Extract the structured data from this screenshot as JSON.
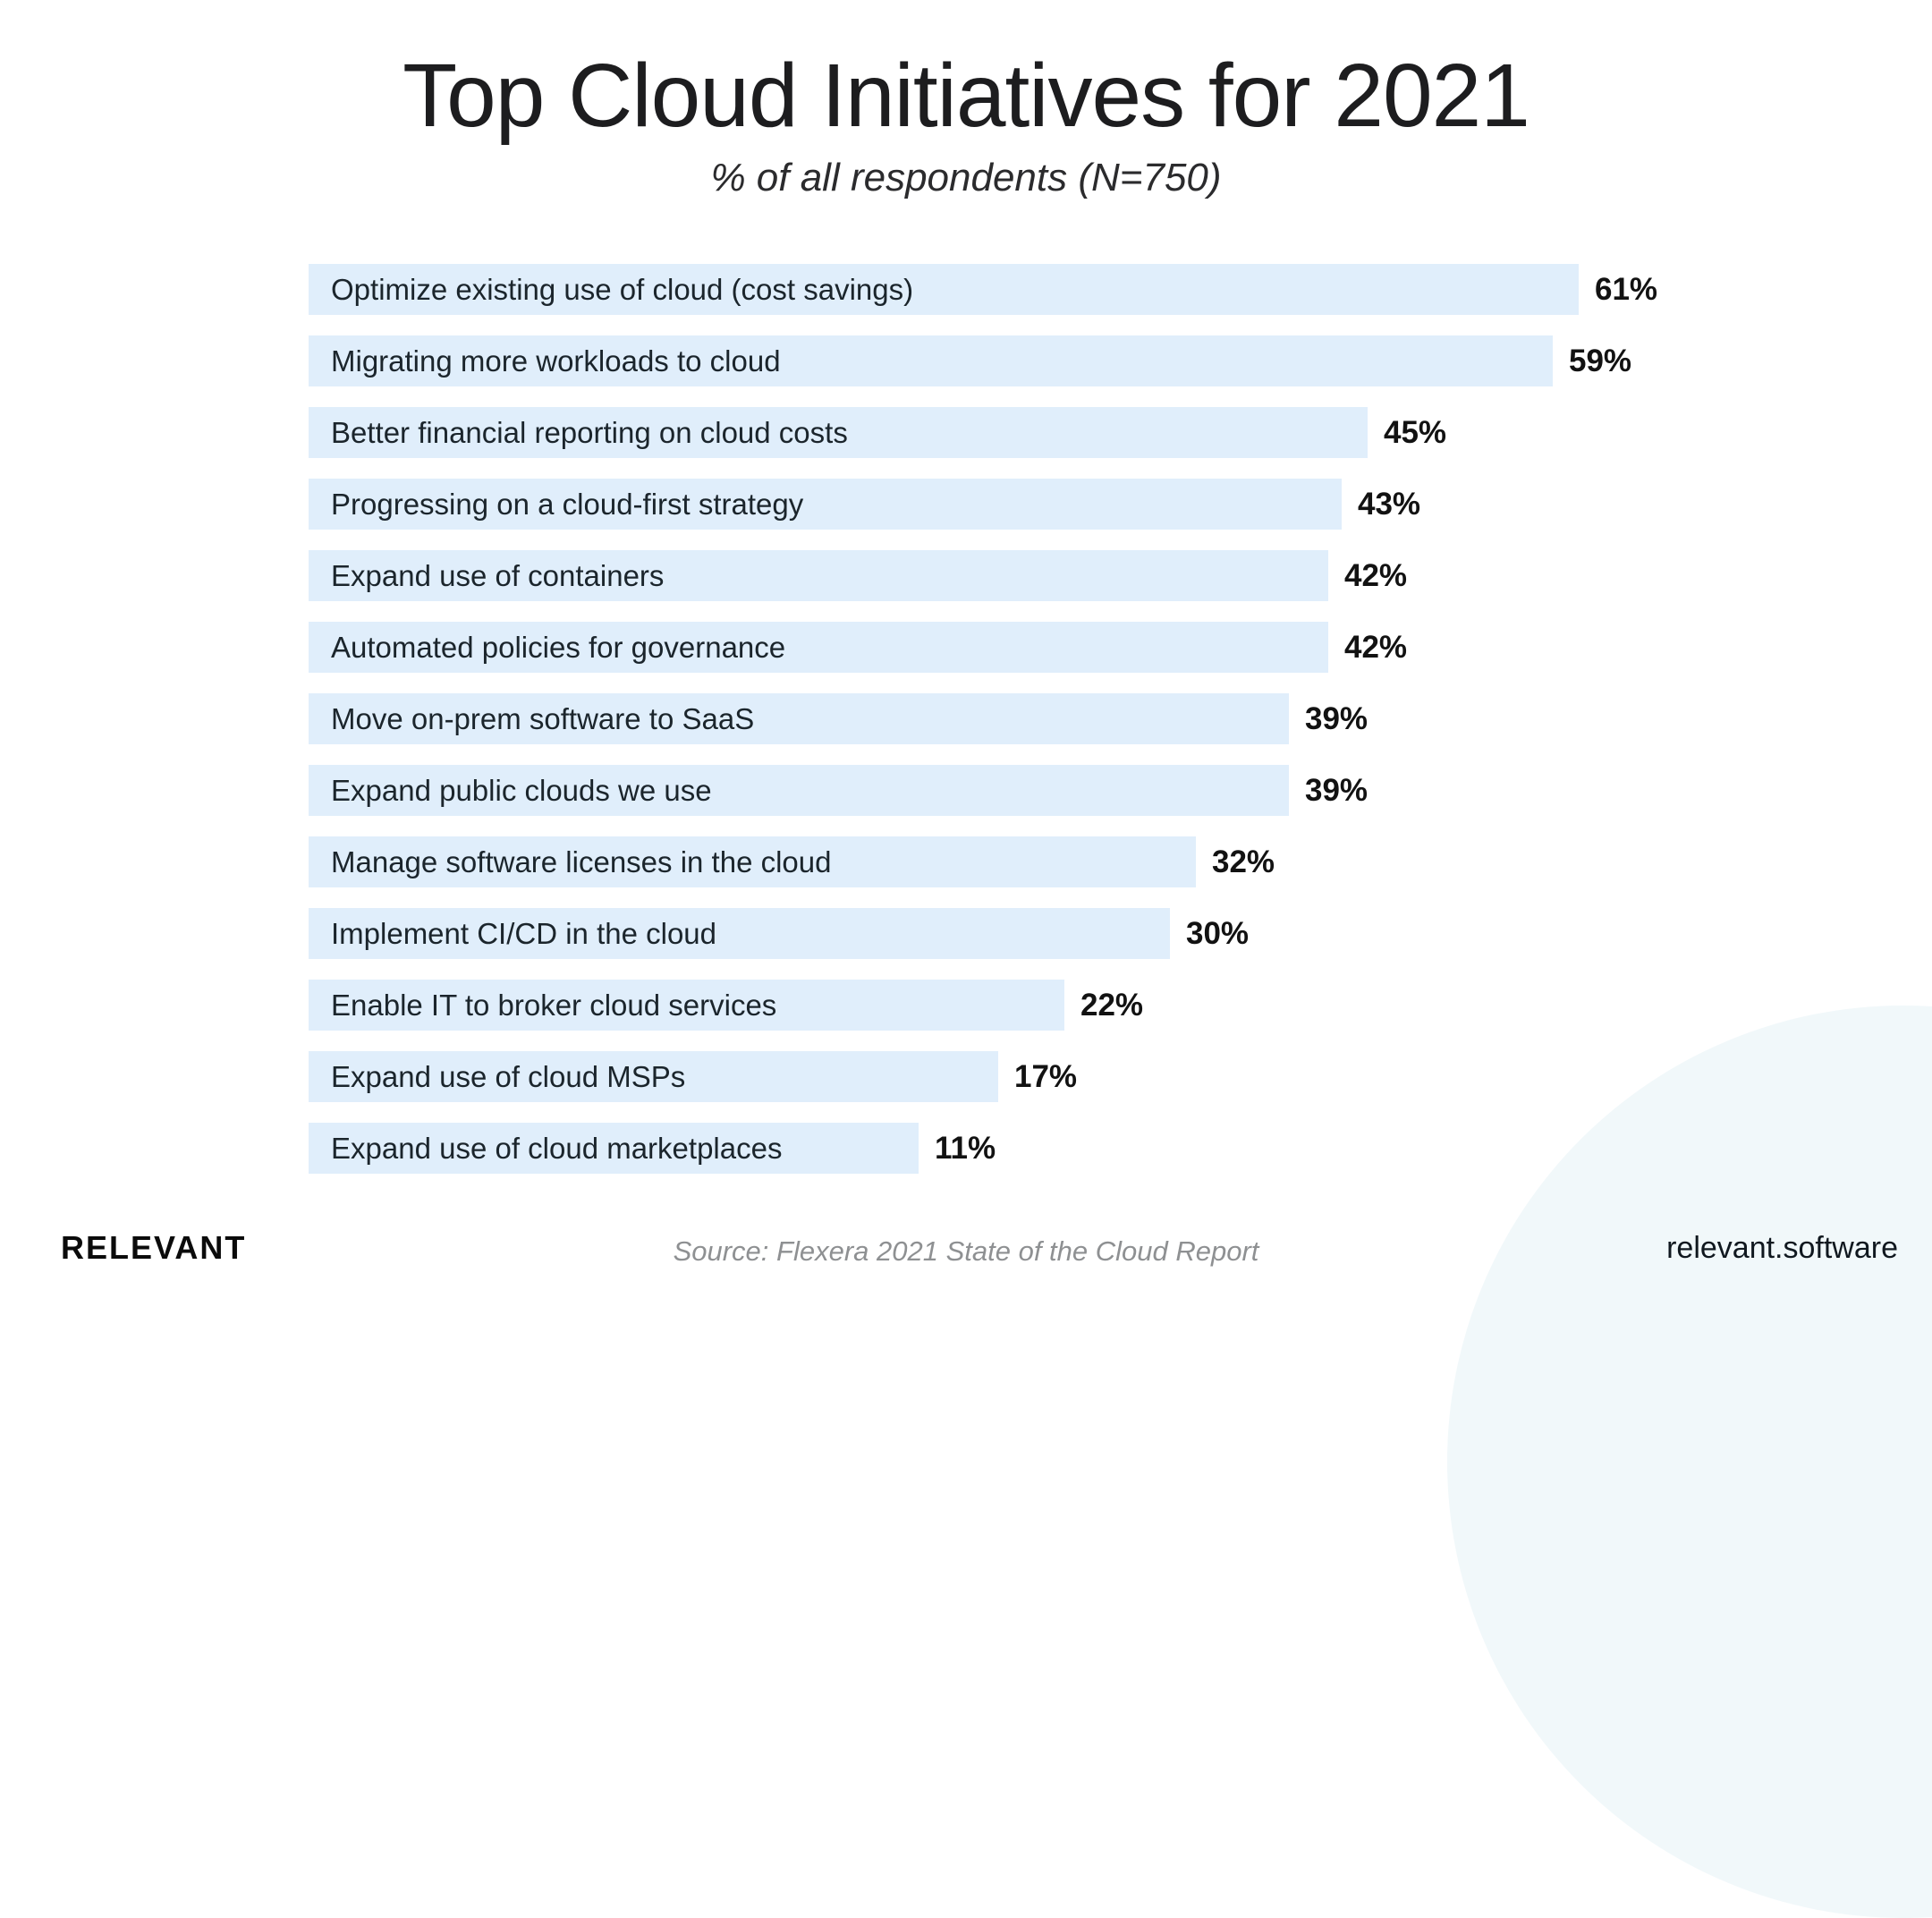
{
  "chart_data": {
    "type": "bar",
    "orientation": "horizontal",
    "title": "Top Cloud Initiatives for 2021",
    "subtitle": "% of all respondents (N=750)",
    "unit": "%",
    "categories": [
      "Optimize existing use of cloud (cost savings)",
      "Migrating more workloads to cloud",
      "Better financial reporting on cloud costs",
      "Progressing on a cloud-first strategy",
      "Expand use of containers",
      "Automated policies for governance",
      "Move on-prem software to SaaS",
      "Expand public clouds we use",
      "Manage software licenses in the cloud",
      "Implement CI/CD in the cloud",
      "Enable IT to broker cloud services",
      "Expand use of cloud MSPs",
      "Expand use of cloud marketplaces"
    ],
    "values": [
      61,
      59,
      45,
      43,
      42,
      42,
      39,
      39,
      32,
      30,
      22,
      17,
      11
    ],
    "value_label_position": "right-of-bar",
    "category_label_position": "inside-bar-left",
    "grid": false,
    "legend": false,
    "bar_color": "#e0eefb",
    "value_label_color": "#121212",
    "category_label_color": "#1b252c"
  },
  "header": {
    "title": "Top Cloud Initiatives for 2021",
    "subtitle": "% of all respondents (N=750)"
  },
  "footer": {
    "logo_text": "RELEVANT",
    "source_text": "Source: Flexera 2021 State of the Cloud Report",
    "website_text": "relevant.software"
  },
  "colors": {
    "background": "#ffffff",
    "bar_fill": "#e0eefb",
    "corner_circle": "#f1f8fa",
    "title_text": "#1d1d1f",
    "source_text": "#8e9092"
  }
}
